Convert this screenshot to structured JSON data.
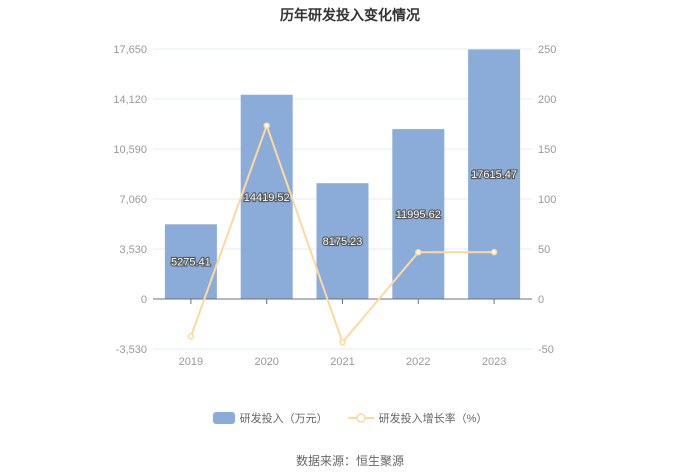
{
  "chart_data": {
    "type": "bar+line",
    "title": "历年研发投入变化情况",
    "categories": [
      "2019",
      "2020",
      "2021",
      "2022",
      "2023"
    ],
    "series": [
      {
        "name": "研发投入（万元）",
        "type": "bar",
        "axis": "left",
        "values": [
          5275.41,
          14419.52,
          8175.23,
          11995.62,
          17615.47
        ],
        "labels": [
          "5275.41",
          "14419.52",
          "8175.23",
          "11995.62",
          "17615.47"
        ],
        "color": "#8bacd9"
      },
      {
        "name": "研发投入增长率（%）",
        "type": "line",
        "axis": "right",
        "values": [
          -37.4,
          173.34,
          -43.3,
          46.73,
          46.85
        ],
        "color": "#fdd9a0"
      }
    ],
    "left_axis": {
      "ylim": [
        -3530,
        17650
      ],
      "ticks": [
        -3530,
        0,
        3530,
        7060,
        10590,
        14120,
        17650
      ],
      "tick_labels": [
        "-3,530",
        "0",
        "3,530",
        "7,060",
        "10,590",
        "14,120",
        "17,650"
      ]
    },
    "right_axis": {
      "ylim": [
        -50,
        250
      ],
      "ticks": [
        -50,
        0,
        50,
        100,
        150,
        200,
        250
      ],
      "tick_labels": [
        "-50",
        "0",
        "50",
        "100",
        "150",
        "200",
        "250"
      ]
    },
    "grid": true,
    "legend": "bottom"
  },
  "source": "数据来源：恒生聚源"
}
